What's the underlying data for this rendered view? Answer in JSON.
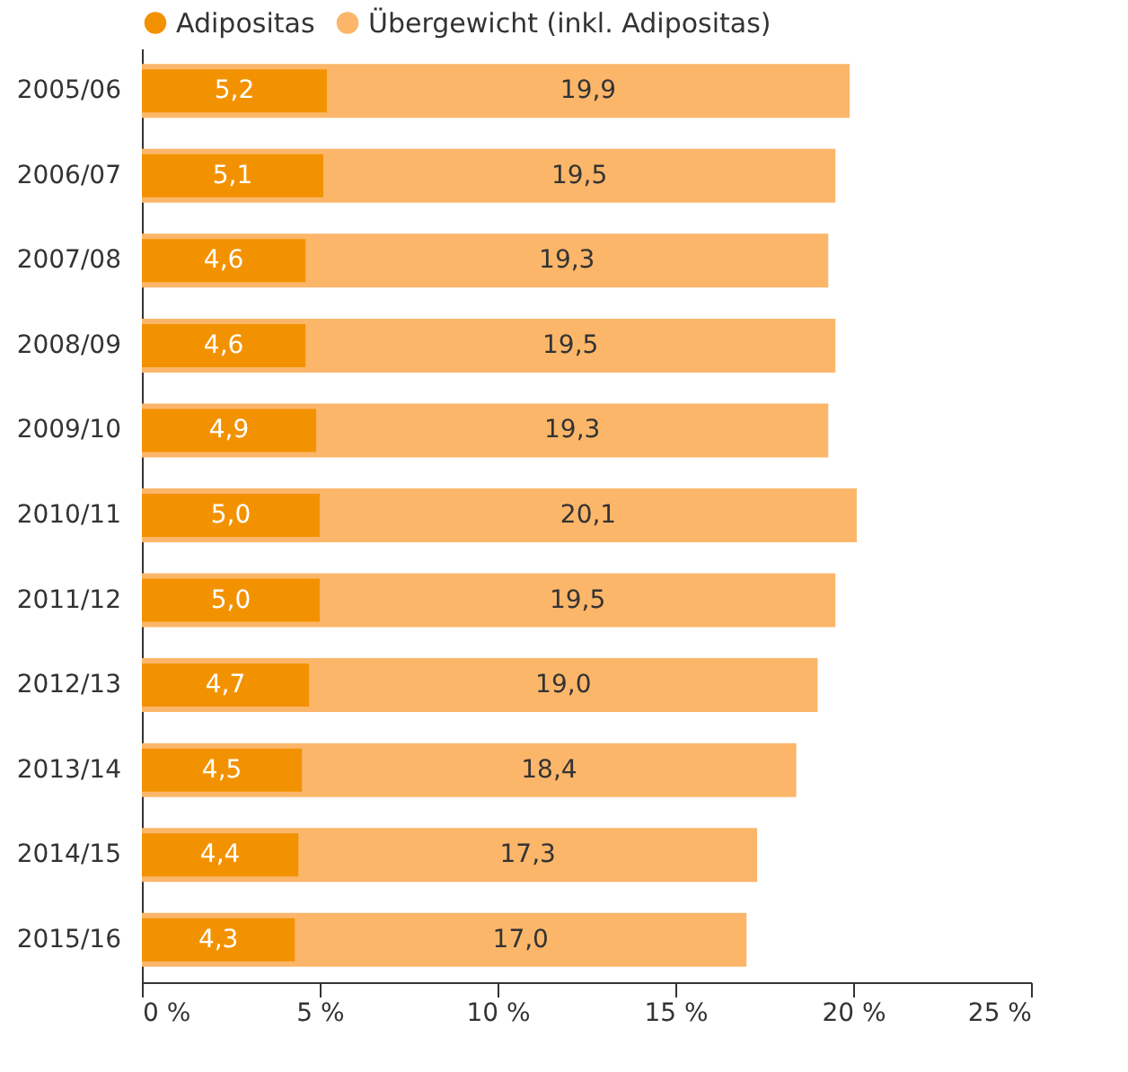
{
  "chart_data": {
    "type": "bar",
    "orientation": "horizontal",
    "categories": [
      "2005/06",
      "2006/07",
      "2007/08",
      "2008/09",
      "2009/10",
      "2010/11",
      "2011/12",
      "2012/13",
      "2013/14",
      "2014/15",
      "2015/16"
    ],
    "series": [
      {
        "name": "Adipositas",
        "color": "#f39200",
        "values": [
          5.2,
          5.1,
          4.6,
          4.6,
          4.9,
          5.0,
          5.0,
          4.7,
          4.5,
          4.4,
          4.3
        ],
        "value_labels": [
          "5,2",
          "5,1",
          "4,6",
          "4,6",
          "4,9",
          "5,0",
          "5,0",
          "4,7",
          "4,5",
          "4,4",
          "4,3"
        ]
      },
      {
        "name": "Übergewicht (inkl. Adipositas)",
        "color": "#fbb66a",
        "values": [
          19.9,
          19.5,
          19.3,
          19.5,
          19.3,
          20.1,
          19.5,
          19.0,
          18.4,
          17.3,
          17.0
        ],
        "value_labels": [
          "19,9",
          "19,5",
          "19,3",
          "19,5",
          "19,3",
          "20,1",
          "19,5",
          "19,0",
          "18,4",
          "17,3",
          "17,0"
        ]
      }
    ],
    "xlim": [
      0,
      25
    ],
    "xticks": [
      {
        "value": 0,
        "label": "0 %"
      },
      {
        "value": 5,
        "label": "5 %"
      },
      {
        "value": 10,
        "label": "10 %"
      },
      {
        "value": 15,
        "label": "15 %"
      },
      {
        "value": 20,
        "label": "20 %"
      },
      {
        "value": 25,
        "label": "25 %"
      }
    ],
    "grid": false,
    "legend": "top left"
  }
}
